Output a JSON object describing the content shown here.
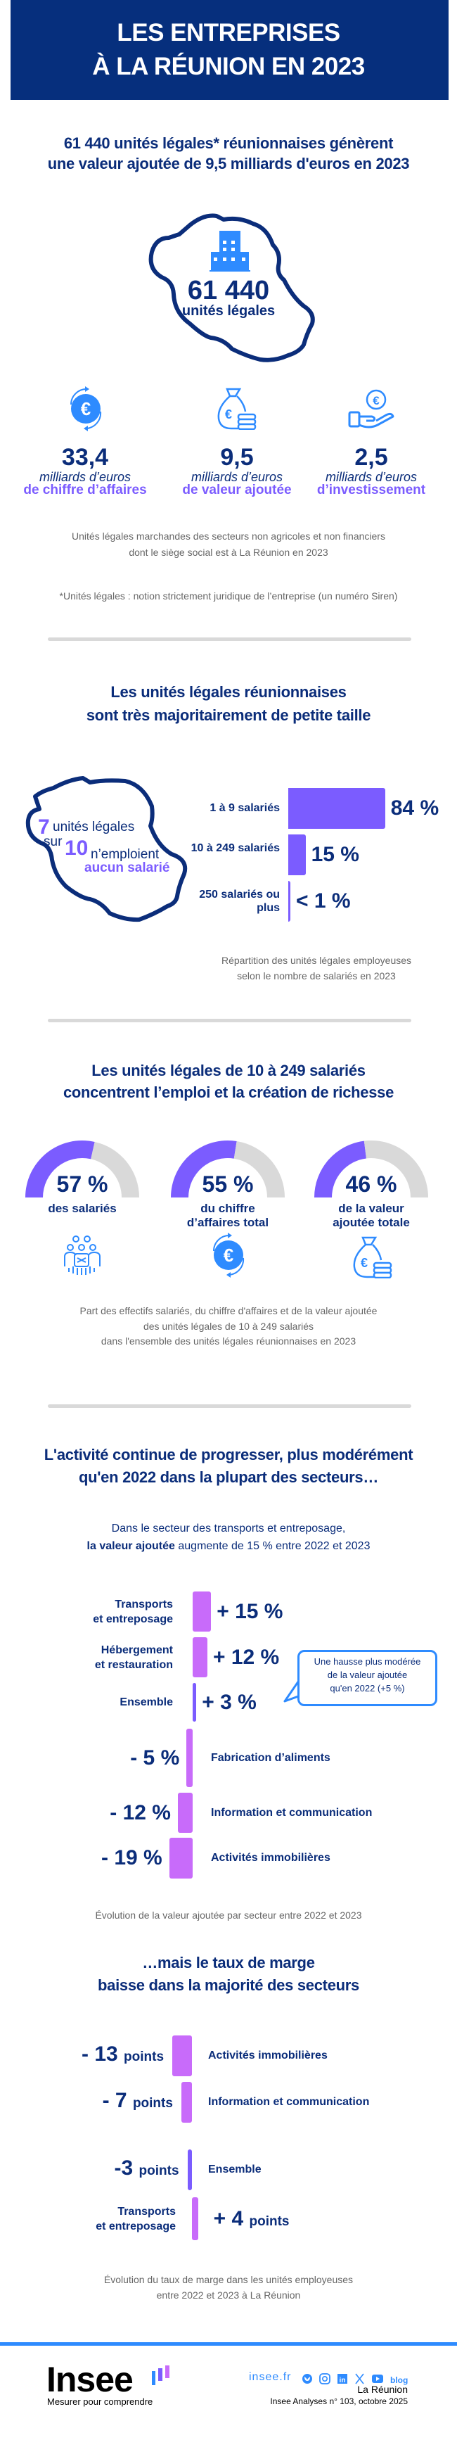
{
  "banner": {
    "title_line1": "LES ENTREPRISES",
    "title_line2": "À LA RÉUNION EN 2023"
  },
  "section1": {
    "heading_line1": "61 440 unités légales* réunionnaises génèrent",
    "heading_line2": "une valeur ajoutée de 9,5 milliards d'euros en 2023",
    "island_value": "61 440",
    "island_label": "unités légales",
    "kpis": [
      {
        "icon": "euro-cycle-icon",
        "value": "33,4",
        "unit": "milliards d’euros",
        "label": "de chiffre d’affaires"
      },
      {
        "icon": "money-bag-icon",
        "value": "9,5",
        "unit": "milliards d’euros",
        "label": "de valeur ajoutée"
      },
      {
        "icon": "hand-euro-icon",
        "value": "2,5",
        "unit": "milliards d’euros",
        "label": "d’investissement"
      }
    ],
    "note_line1": "Unités légales marchandes des secteurs non agricoles et non financiers",
    "note_line2": "dont le siège social est à La Réunion en 2023",
    "footnote": "*Unités légales : notion strictement juridique de l’entreprise (un numéro Siren)"
  },
  "section2": {
    "heading_line1": "Les unités légales réunionnaises",
    "heading_line2": "sont très majoritairement de petite taille",
    "island": {
      "num1": "7",
      "text1": "unités légales",
      "text2": "sur",
      "num2": "10",
      "text3": "n’emploient",
      "text4": "aucun salarié"
    },
    "caption_line1": "Répartition des unités légales employeuses",
    "caption_line2": "selon le nombre de salariés en 2023"
  },
  "section3": {
    "heading_line1": "Les unités légales de 10 à 249 salariés",
    "heading_line2": "concentrent l’emploi et la création de richesse",
    "caption_line1": "Part des effectifs salariés, du chiffre d'affaires et de la valeur ajoutée",
    "caption_line2": "des unités légales de 10 à 249 salariés",
    "caption_line3": "dans l'ensemble des unités légales réunionnaises en 2023"
  },
  "section4": {
    "heading_line1": "L'activité continue de progresser, plus modérément",
    "heading_line2": "qu'en 2022 dans la plupart des secteurs…",
    "sub_line1": "Dans le secteur des transports et entreposage,",
    "sub_bold": "la valeur ajoutée",
    "sub_rest": " augmente de 15 % entre 2022 et 2023",
    "callout_line1": "Une hausse plus modérée",
    "callout_line2": "de la valeur ajoutée",
    "callout_line3": "qu'en 2022 (+5 %)",
    "caption": "Évolution de la valeur ajoutée par secteur entre 2022 et 2023"
  },
  "section5": {
    "heading_line1": "…mais le taux de marge",
    "heading_line2": "baisse dans la majorité des secteurs",
    "caption_line1": "Évolution du taux de marge dans les unités employeuses",
    "caption_line2": "entre 2022 et 2023 à La Réunion"
  },
  "footer": {
    "logo_text": "Insee",
    "tagline": "Mesurer pour comprendre",
    "site": "insee.fr",
    "social_icons": [
      "bluesky-icon",
      "instagram-icon",
      "linkedin-icon",
      "x-icon",
      "youtube-icon",
      "blog-icon"
    ],
    "blog": "blog",
    "region": "La Réunion",
    "publication": "Insee Analyses n° 103, octobre 2025"
  },
  "colors": {
    "navy": "#0b2d7a",
    "banner": "#062f7d",
    "purple": "#7b5cff",
    "sector_bar": "#c86bfa",
    "icon_blue": "#2e8bff",
    "gauge_rest": "#d9d9d9"
  },
  "chart_data": [
    {
      "type": "bar",
      "orientation": "horizontal",
      "unit": "%",
      "categories": [
        "1 à 9 salariés",
        "10 à 249 salariés",
        "250 salariés ou plus"
      ],
      "values": [
        84,
        15,
        1
      ],
      "value_labels": [
        "84 %",
        "15 %",
        "< 1 %"
      ]
    },
    {
      "type": "pie",
      "style": "half-donut gauges",
      "categories": [
        "des salariés",
        "du chiffre d’affaires total",
        "de la valeur ajoutée totale"
      ],
      "label_lines": [
        [
          "des salariés"
        ],
        [
          "du chiffre",
          "d’affaires total"
        ],
        [
          "de la valeur",
          "ajoutée totale"
        ]
      ],
      "icons": [
        "employees-icon",
        "euro-cycle-icon",
        "money-bag-icon"
      ],
      "values": [
        57,
        55,
        46
      ],
      "value_labels": [
        "57 %",
        "55 %",
        "46 %"
      ]
    },
    {
      "type": "bar",
      "orientation": "horizontal diverging",
      "unit": "%",
      "categories": [
        "Transports et entreposage",
        "Hébergement et restauration",
        "Ensemble",
        "Fabrication d’aliments",
        "Information et communication",
        "Activités immobilières"
      ],
      "label_lines": [
        [
          "Transports",
          "et entreposage"
        ],
        [
          "Hébergement",
          "et restauration"
        ],
        [
          "Ensemble"
        ],
        [
          "Fabrication d’aliments"
        ],
        [
          "Information et communication"
        ],
        [
          "Activités immobilières"
        ]
      ],
      "values": [
        15,
        12,
        3,
        -5,
        -12,
        -19
      ],
      "value_labels": [
        "+ 15 %",
        "+ 12 %",
        "+ 3 %",
        "- 5 %",
        "- 12 %",
        "- 19 %"
      ]
    },
    {
      "type": "bar",
      "orientation": "horizontal diverging",
      "unit": "points",
      "categories": [
        "Activités immobilières",
        "Information et communication",
        "Ensemble",
        "Transports et entreposage"
      ],
      "label_lines": [
        [
          "Activités immobilières"
        ],
        [
          "Information et communication"
        ],
        [
          "Ensemble"
        ],
        [
          "Transports",
          "et entreposage"
        ]
      ],
      "values": [
        -13,
        -7,
        -3,
        4
      ],
      "value_labels": [
        "- 13",
        "- 7",
        "-3",
        "+ 4"
      ],
      "value_unit_label": "points"
    }
  ]
}
